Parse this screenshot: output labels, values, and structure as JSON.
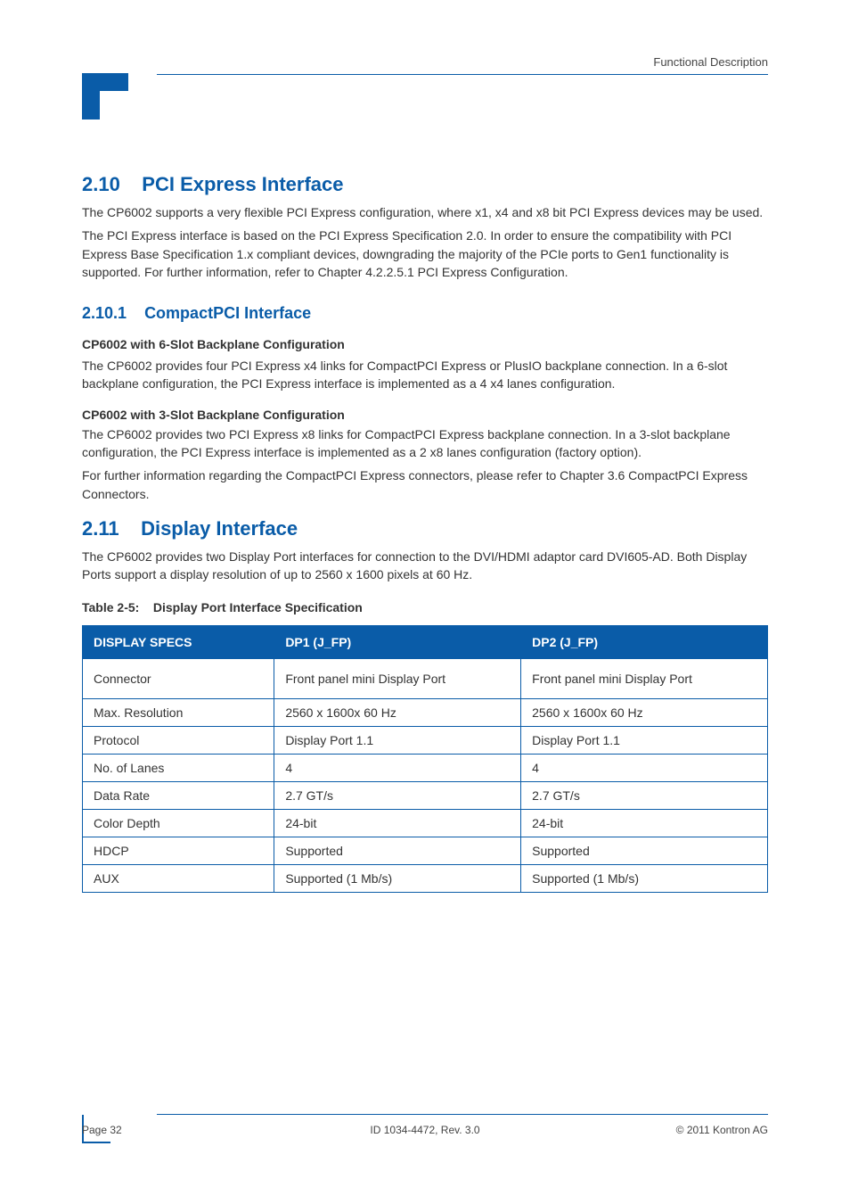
{
  "colors": {
    "brand": "#0a5ca8",
    "text": "#333333",
    "header_bg": "#0a5ca8",
    "header_fg": "#ffffff",
    "page_bg": "#ffffff"
  },
  "header": {
    "right_text": "Functional Description"
  },
  "section": {
    "number": "2.10",
    "title": "PCI Express Interface",
    "para1": "The CP6002 supports a very flexible PCI Express configuration, where x1, x4 and x8 bit PCI Express devices may be used.",
    "para2": "The PCI Express interface is based on the PCI Express Specification 2.0. In order to ensure the compatibility with PCI Express Base Specification 1.x compliant devices, downgrading the majority of the PCIe ports to Gen1 functionality is supported. For further information, refer to Chapter 4.2.2.5.1 PCI Express Configuration.",
    "sub": {
      "number": "2.10.1",
      "title": "CompactPCI Interface"
    },
    "label1": "CP6002 with 6-Slot Backplane Configuration",
    "body1": "The CP6002 provides four PCI Express x4 links for CompactPCI Express or PlusIO backplane connection. In a 6-slot backplane configuration, the PCI Express interface is implemented as a 4 x4 lanes configuration.",
    "label2": "CP6002 with 3-Slot Backplane Configuration",
    "body2a": "The CP6002 provides two PCI Express x8 links for CompactPCI Express backplane connection. In a 3-slot backplane configuration, the PCI Express interface is implemented as a 2 x8 lanes configuration (factory option).",
    "body2b": "For further information regarding the CompactPCI Express connectors, please refer to Chapter 3.6 CompactPCI Express Connectors."
  },
  "section2": {
    "number": "2.11",
    "title": "Display Interface",
    "para": "The CP6002 provides two Display Port interfaces for connection to the DVI/HDMI adaptor card DVI605-AD. Both Display Ports support a display resolution of up to 2560 x 1600 pixels at 60 Hz.",
    "table_caption_label": "Table 2-5:",
    "table_caption_text": "Display Port Interface Specification",
    "table": {
      "columns": [
        "DISPLAY SPECS",
        "DP1  (J_FP)",
        "DP2 (J_FP)"
      ],
      "col_widths": [
        "28%",
        "36%",
        "36%"
      ],
      "header_bg": "#0a5ca8",
      "header_fg": "#ffffff",
      "border_color": "#0a5ca8",
      "rows": [
        [
          "Connector",
          "Front panel mini Display Port",
          "Front panel mini Display Port"
        ],
        [
          "Max. Resolution",
          "2560 x 1600x 60 Hz",
          "2560 x 1600x 60 Hz"
        ],
        [
          "Protocol",
          "Display Port 1.1",
          "Display Port 1.1"
        ],
        [
          "No. of Lanes",
          "4",
          "4"
        ],
        [
          "Data Rate",
          "2.7 GT/s",
          "2.7 GT/s"
        ],
        [
          "Color Depth",
          "24-bit",
          "24-bit"
        ],
        [
          "HDCP",
          "Supported",
          "Supported"
        ],
        [
          "AUX",
          "Supported (1 Mb/s)",
          "Supported (1 Mb/s)"
        ]
      ]
    }
  },
  "footer": {
    "left": "Page 32",
    "center": "ID 1034-4472, Rev. 3.0",
    "right": "© 2011 Kontron AG"
  }
}
